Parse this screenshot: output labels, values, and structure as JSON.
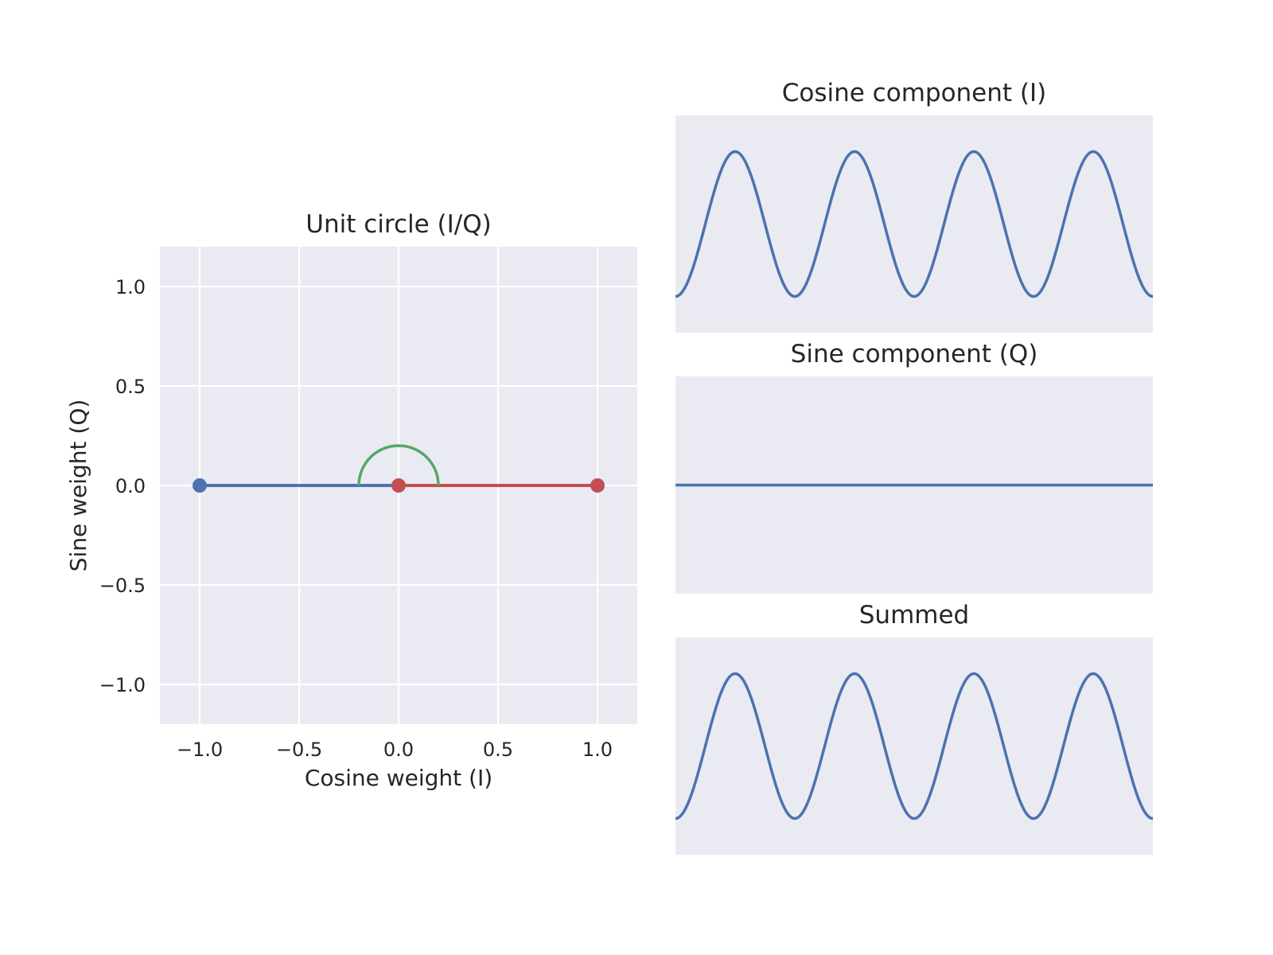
{
  "chart_data": [
    {
      "type": "line",
      "title": "Unit circle (I/Q)",
      "xlabel": "Cosine weight (I)",
      "ylabel": "Sine weight (Q)",
      "xlim": [
        -1.2,
        1.2
      ],
      "ylim": [
        -1.2,
        1.2
      ],
      "grid": true,
      "xticks": [
        -1.0,
        -0.5,
        0.0,
        0.5,
        1.0
      ],
      "yticks": [
        -1.0,
        -0.5,
        0.0,
        0.5,
        1.0
      ],
      "xtick_labels": [
        "−1.0",
        "−0.5",
        "0.0",
        "0.5",
        "1.0"
      ],
      "ytick_labels": [
        "−1.0",
        "−0.5",
        "0.0",
        "0.5",
        "1.0"
      ],
      "series": [
        {
          "color": "#4c72b0",
          "x": [
            0,
            -1
          ],
          "y": [
            0,
            0
          ],
          "marker": "end"
        },
        {
          "color": "#c44e52",
          "x": [
            0,
            1
          ],
          "y": [
            0,
            0
          ],
          "marker": "both"
        },
        {
          "color": "#55a868",
          "type": "arc",
          "center": [
            0,
            0
          ],
          "radius": 0.2,
          "theta_start_deg": 0,
          "theta_end_deg": 180
        }
      ]
    },
    {
      "type": "line",
      "title": "Cosine component (I)",
      "grid": false,
      "series": [
        {
          "color": "#4c72b0",
          "function": "cos",
          "amplitude": -1,
          "cycles": 4
        }
      ],
      "ylim": [
        -1.5,
        1.5
      ]
    },
    {
      "type": "line",
      "title": "Sine component (Q)",
      "grid": false,
      "series": [
        {
          "color": "#4c72b0",
          "function": "sin",
          "amplitude": 0,
          "cycles": 4
        }
      ],
      "ylim": [
        -1.5,
        1.5
      ]
    },
    {
      "type": "line",
      "title": "Summed",
      "grid": false,
      "series": [
        {
          "color": "#4c72b0",
          "function": "cos",
          "amplitude": -1,
          "cycles": 4
        }
      ],
      "ylim": [
        -1.5,
        1.5
      ]
    }
  ],
  "colors": {
    "axes_bg": "#eaeaf2",
    "grid": "#ffffff",
    "text": "#262626"
  }
}
